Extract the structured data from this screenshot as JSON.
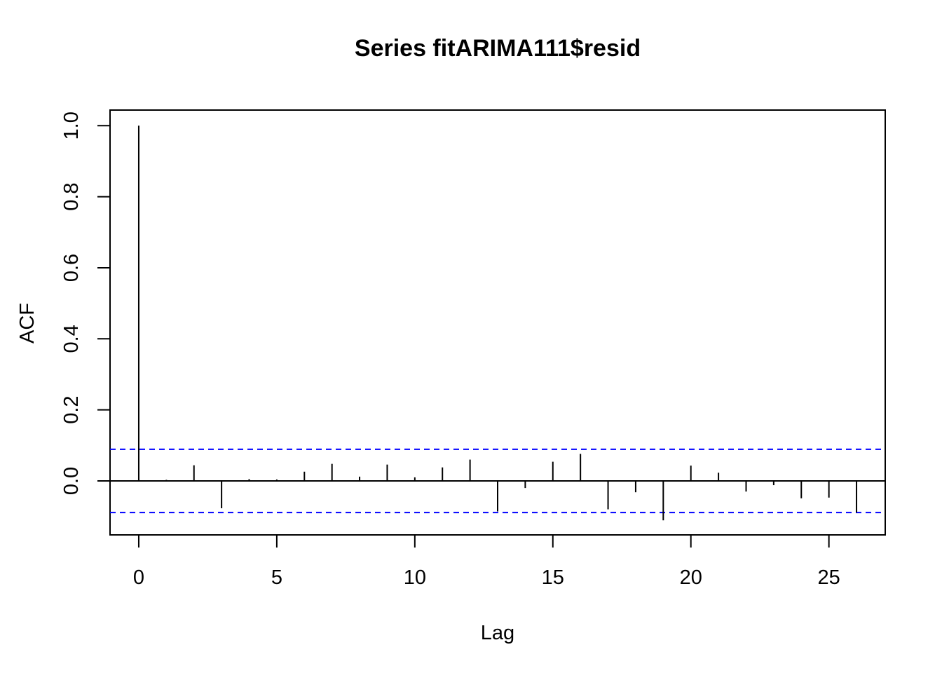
{
  "chart_data": {
    "type": "bar",
    "title": "Series  fitARIMA111$resid",
    "xlabel": "Lag",
    "ylabel": "ACF",
    "xlim": [
      -1.04,
      27.04
    ],
    "ylim": [
      -0.152,
      1.044
    ],
    "x_ticks": [
      0,
      5,
      10,
      15,
      20,
      25
    ],
    "x_tick_labels": [
      "0",
      "5",
      "10",
      "15",
      "20",
      "25"
    ],
    "y_ticks": [
      0.0,
      0.2,
      0.4,
      0.6,
      0.8,
      1.0
    ],
    "y_tick_labels": [
      "0.0",
      "0.2",
      "0.4",
      "0.6",
      "0.8",
      "1.0"
    ],
    "lags": [
      0,
      1,
      2,
      3,
      4,
      5,
      6,
      7,
      8,
      9,
      10,
      11,
      12,
      13,
      14,
      15,
      16,
      17,
      18,
      19,
      20,
      21,
      22,
      23,
      24,
      25,
      26
    ],
    "acf": [
      1.0,
      0.003,
      0.044,
      -0.077,
      0.005,
      0.004,
      0.026,
      0.048,
      0.012,
      0.046,
      0.01,
      0.038,
      0.06,
      -0.086,
      -0.02,
      0.054,
      0.076,
      -0.08,
      -0.032,
      -0.111,
      0.043,
      0.023,
      -0.03,
      -0.012,
      -0.049,
      -0.047,
      -0.089
    ],
    "confidence_bound": 0.089,
    "grid": false,
    "colors": {
      "bars": "#000000",
      "confidence": "#0000ff",
      "axes": "#000000"
    }
  }
}
